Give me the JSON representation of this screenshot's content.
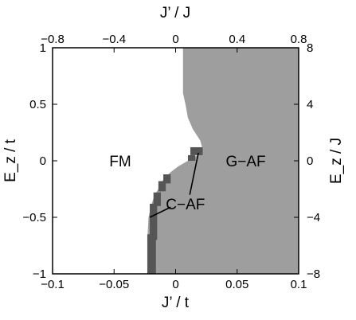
{
  "chart_data": {
    "type": "heatmap",
    "title": "",
    "xlabel": "J’ / t",
    "ylabel": "E_z / t",
    "x2label": "J’ / J",
    "y2label": "E_z / J",
    "xlim": [
      -0.1,
      0.1
    ],
    "ylim": [
      -1,
      1
    ],
    "x2lim": [
      -0.8,
      0.8
    ],
    "y2lim": [
      -8,
      8
    ],
    "xticks": [
      "−0.1",
      "−0.05",
      "0",
      "0.05",
      "0.1"
    ],
    "yticks": [
      "−1",
      "−0.5",
      "0",
      "0.5",
      "1"
    ],
    "x2ticks": [
      "−0.8",
      "−0.4",
      "0",
      "0.4",
      "0.8"
    ],
    "y2ticks": [
      "−8",
      "−4",
      "0",
      "4",
      "8"
    ],
    "phases": [
      {
        "name": "FM",
        "color": "#ffffff"
      },
      {
        "name": "G−AF",
        "color": "#9e9e9e"
      },
      {
        "name": "C−AF",
        "color": "#555555"
      }
    ],
    "fm_boundary": [
      {
        "y": 1.0,
        "x": 0.006
      },
      {
        "y": 0.6,
        "x": 0.006
      },
      {
        "y": 0.5,
        "x": 0.008
      },
      {
        "y": 0.38,
        "x": 0.01
      },
      {
        "y": 0.28,
        "x": 0.014
      },
      {
        "y": 0.18,
        "x": 0.02
      },
      {
        "y": 0.1,
        "x": 0.022
      },
      {
        "y": 0.05,
        "x": 0.018
      },
      {
        "y": 0.0,
        "x": 0.01
      },
      {
        "y": -0.05,
        "x": 0.002
      },
      {
        "y": -0.1,
        "x": -0.004
      },
      {
        "y": -0.15,
        "x": -0.009
      },
      {
        "y": -0.2,
        "x": -0.012
      },
      {
        "y": -0.25,
        "x": -0.014
      },
      {
        "y": -0.3,
        "x": -0.017
      },
      {
        "y": -0.4,
        "x": -0.02
      },
      {
        "y": -0.5,
        "x": -0.022
      },
      {
        "y": -0.7,
        "x": -0.023
      },
      {
        "y": -1.0,
        "x": -0.023
      }
    ],
    "caf_patches": [
      {
        "x0": 0.012,
        "x1": 0.022,
        "y0": 0.05,
        "y1": 0.12
      },
      {
        "x0": 0.01,
        "x1": 0.016,
        "y0": 0.0,
        "y1": 0.05
      },
      {
        "x0": -0.01,
        "x1": -0.004,
        "y0": -0.2,
        "y1": -0.12
      },
      {
        "x0": -0.014,
        "x1": -0.008,
        "y0": -0.27,
        "y1": -0.18
      },
      {
        "x0": -0.018,
        "x1": -0.012,
        "y0": -0.4,
        "y1": -0.28
      },
      {
        "x0": -0.021,
        "x1": -0.015,
        "y0": -0.7,
        "y1": -0.38
      },
      {
        "x0": -0.023,
        "x1": -0.016,
        "y0": -1.0,
        "y1": -0.65
      }
    ],
    "annotations": [
      {
        "text": "FM",
        "x": -0.045,
        "y": 0.0
      },
      {
        "text": "G−AF",
        "x": 0.057,
        "y": 0.0
      },
      {
        "text": "C−AF",
        "x": 0.008,
        "y": -0.38
      }
    ],
    "pointer_lines": [
      {
        "x0": 0.0115,
        "y0": -0.3,
        "x1": 0.0185,
        "y1": 0.07
      },
      {
        "x0": -0.004,
        "y0": -0.41,
        "x1": -0.021,
        "y1": -0.5
      }
    ]
  }
}
